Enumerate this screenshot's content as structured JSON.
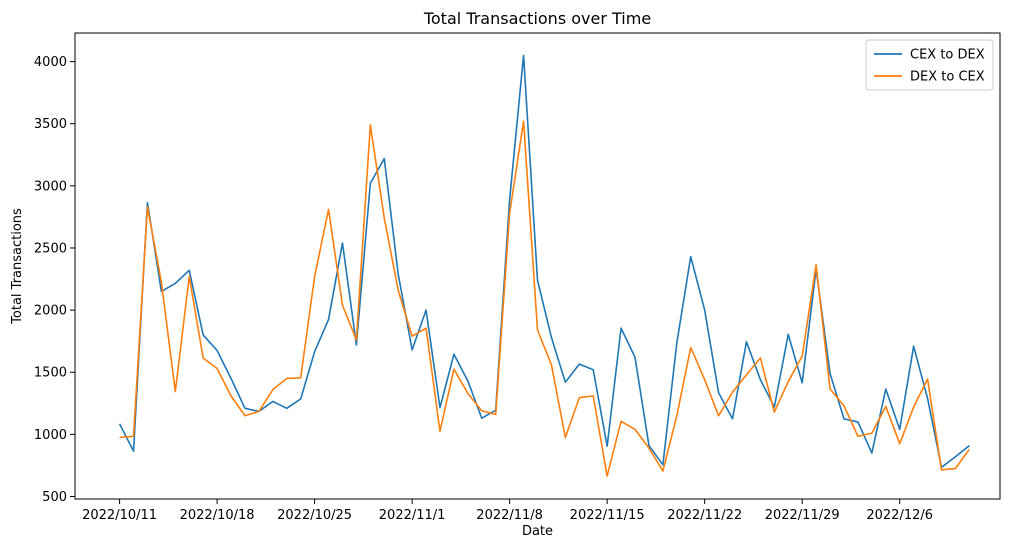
{
  "chart_data": {
    "type": "line",
    "title": "Total Transactions over Time",
    "xlabel": "Date",
    "ylabel": "Total Transactions",
    "x_start": "2022/10/11",
    "x_ticks": [
      {
        "label": "2022/10/11",
        "day": 0
      },
      {
        "label": "2022/10/18",
        "day": 7
      },
      {
        "label": "2022/10/25",
        "day": 14
      },
      {
        "label": "2022/11/1",
        "day": 21
      },
      {
        "label": "2022/11/8",
        "day": 28
      },
      {
        "label": "2022/11/15",
        "day": 35
      },
      {
        "label": "2022/11/22",
        "day": 42
      },
      {
        "label": "2022/11/29",
        "day": 49
      },
      {
        "label": "2022/12/6",
        "day": 56
      }
    ],
    "xlim": [
      -3.2,
      63.2
    ],
    "ylim": [
      480,
      4230
    ],
    "y_ticks": [
      500,
      1000,
      1500,
      2000,
      2500,
      3000,
      3500,
      4000
    ],
    "grid": false,
    "legend_position": "top-right",
    "series": [
      {
        "name": "CEX to DEX",
        "color": "#1f77b4",
        "values": [
          1085,
          865,
          2865,
          2150,
          2215,
          2320,
          1800,
          1675,
          1450,
          1210,
          1185,
          1265,
          1210,
          1285,
          1665,
          1925,
          2540,
          1720,
          3020,
          3220,
          2290,
          1680,
          2000,
          1215,
          1645,
          1430,
          1130,
          1195,
          2890,
          4050,
          2240,
          1780,
          1420,
          1565,
          1520,
          905,
          1855,
          1620,
          910,
          755,
          1735,
          2430,
          2000,
          1335,
          1125,
          1745,
          1440,
          1220,
          1805,
          1415,
          2330,
          1490,
          1125,
          1100,
          850,
          1365,
          1040,
          1710,
          1290,
          735,
          820,
          910
        ]
      },
      {
        "name": "DEX to CEX",
        "color": "#ff7f0e",
        "values": [
          975,
          985,
          2830,
          2225,
          1345,
          2270,
          1615,
          1530,
          1310,
          1150,
          1185,
          1360,
          1450,
          1455,
          2270,
          2810,
          2040,
          1760,
          3490,
          2740,
          2160,
          1790,
          1855,
          1025,
          1525,
          1330,
          1190,
          1160,
          2780,
          3520,
          1840,
          1560,
          975,
          1295,
          1310,
          665,
          1105,
          1040,
          890,
          705,
          1150,
          1700,
          1440,
          1150,
          1340,
          1480,
          1615,
          1180,
          1425,
          1630,
          2365,
          1365,
          1230,
          985,
          1010,
          1225,
          925,
          1220,
          1445,
          715,
          725,
          880
        ]
      }
    ]
  }
}
